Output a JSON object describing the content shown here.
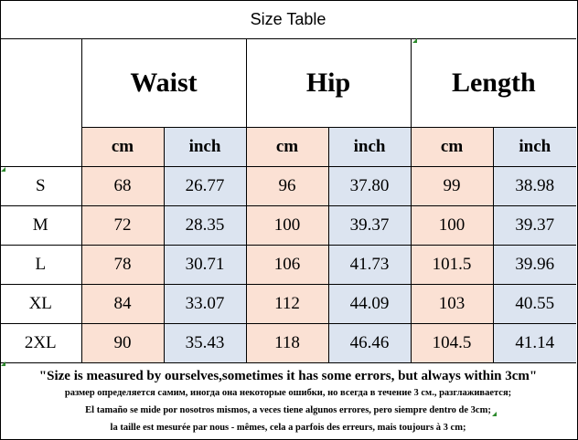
{
  "title": "Size Table",
  "groups": [
    {
      "label": "Waist"
    },
    {
      "label": "Hip"
    },
    {
      "label": "Length"
    }
  ],
  "units": {
    "cm": "cm",
    "inch": "inch"
  },
  "rows": [
    {
      "size": "S",
      "waist_cm": "68",
      "waist_in": "26.77",
      "hip_cm": "96",
      "hip_in": "37.80",
      "len_cm": "99",
      "len_in": "38.98"
    },
    {
      "size": "M",
      "waist_cm": "72",
      "waist_in": "28.35",
      "hip_cm": "100",
      "hip_in": "39.37",
      "len_cm": "100",
      "len_in": "39.37"
    },
    {
      "size": "L",
      "waist_cm": "78",
      "waist_in": "30.71",
      "hip_cm": "106",
      "hip_in": "41.73",
      "len_cm": "101.5",
      "len_in": "39.96"
    },
    {
      "size": "XL",
      "waist_cm": "84",
      "waist_in": "33.07",
      "hip_cm": "112",
      "hip_in": "44.09",
      "len_cm": "103",
      "len_in": "40.55"
    },
    {
      "size": "2XL",
      "waist_cm": "90",
      "waist_in": "35.43",
      "hip_cm": "118",
      "hip_in": "46.46",
      "len_cm": "104.5",
      "len_in": "41.14"
    }
  ],
  "notes": {
    "en": "\"Size is measured by ourselves,sometimes it has some errors, but always within 3cm\"",
    "ru": "размер определяется самим, иногда она некоторые ошибки, но всегда в течение 3 см., разглаживается;",
    "es": "El tamaño se mide por nosotros mismos, a veces tiene algunos errores, pero siempre dentro de 3cm;",
    "fr": "la taille est mesurée par nous - mêmes, cela a parfois des erreurs, mais toujours à 3 cm;"
  },
  "colors": {
    "cm_bg": "#fbe1d4",
    "inch_bg": "#dce4f0",
    "marker": "#2d8a2d"
  }
}
